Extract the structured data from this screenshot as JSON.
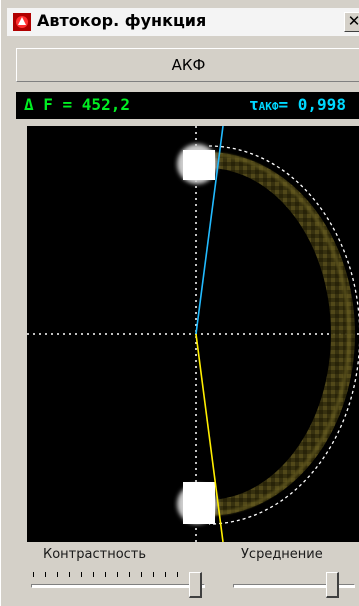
{
  "window": {
    "title": "Автокор. функция",
    "close_glyph": "✕"
  },
  "mode_button": {
    "label": "АКФ"
  },
  "readout": {
    "delta_f_label": "Δ F = ",
    "delta_f_value": "452,2",
    "tau_symbol": "τ",
    "tau_subscript": "АКФ",
    "tau_eq": "= ",
    "tau_value": "0,998"
  },
  "controls": {
    "contrast_label": "Контрастность",
    "averaging_label": "Усреднение",
    "contrast_level": 0.98,
    "averaging_level": 0.85
  },
  "colors": {
    "delta_f": "#00ee22",
    "tau": "#00d8ff",
    "axis_cyan": "#22bbff",
    "axis_yellow": "#ffee00",
    "dots": "#ffffff"
  }
}
